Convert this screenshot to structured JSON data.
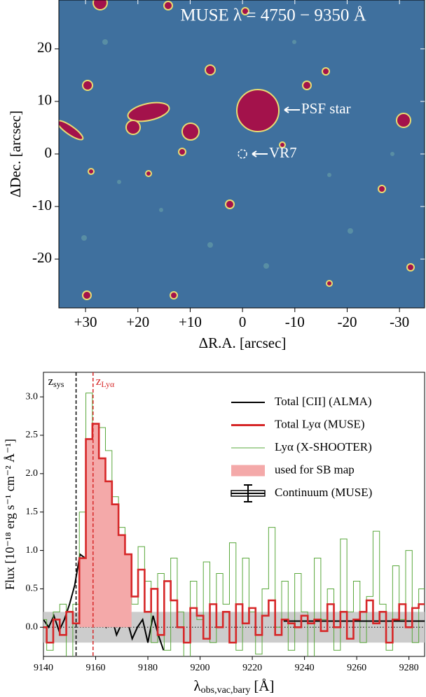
{
  "chart_data": [
    {
      "type": "image",
      "title": "MUSE λ = 4750 − 9350 Å",
      "xlabel": "ΔR.A. [arcsec]",
      "ylabel": "ΔDec. [arcsec]",
      "annotations": [
        "PSF star",
        "VR7"
      ],
      "xlim": [
        35.1,
        -34.8
      ],
      "ylim": [
        -29.3,
        29.3
      ],
      "xticks": [
        {
          "value": 30,
          "label": "+30"
        },
        {
          "value": 20,
          "label": "+20"
        },
        {
          "value": 10,
          "label": "+10"
        },
        0,
        -10,
        -20,
        -30
      ],
      "yticks": [
        20,
        10,
        0,
        -10,
        -20
      ]
    },
    {
      "type": "step",
      "xlabel": {
        "symbol": "λ",
        "subscript": "obs,vac,bary",
        "unit": "[Å]"
      },
      "ylabel": "Flux [10⁻¹⁸ erg s⁻¹ cm⁻² Å⁻¹]",
      "xlim": [
        9140,
        9286
      ],
      "ylim": [
        -0.38,
        3.32
      ],
      "xticks": [
        9140,
        9160,
        9180,
        9200,
        9220,
        9240,
        9260,
        9280
      ],
      "yticks": [
        {
          "value": 0,
          "label": "0.0"
        },
        0.5,
        {
          "value": 1,
          "label": "1.0"
        },
        1.5,
        {
          "value": 2,
          "label": "2.0"
        },
        2.5,
        {
          "value": 3,
          "label": "3.0"
        }
      ],
      "legend": "upper right",
      "noise_band": {
        "range": [
          -0.2,
          0.2
        ],
        "color": "#cccccc"
      },
      "vlines": [
        {
          "x": 9152.5,
          "color": "#000000",
          "symbol": "z",
          "subscript": "sys"
        },
        {
          "x": 9159,
          "color": "#d62728",
          "symbol": "z",
          "subscript": "Lyα"
        }
      ],
      "x": [
        9140,
        9142.5,
        9145,
        9147.5,
        9150,
        9152.5,
        9155,
        9157.5,
        9160,
        9162.5,
        9165,
        9167.5,
        9170,
        9172.5,
        9175,
        9177.5,
        9180,
        9182.5,
        9185,
        9187.5,
        9190,
        9192.5,
        9195,
        9197.5,
        9200,
        9202.5,
        9205,
        9207.5,
        9210,
        9212.5,
        9215,
        9217.5,
        9220,
        9222.5,
        9225,
        9227.5,
        9230,
        9232.5,
        9235,
        9237.5,
        9240,
        9242.5,
        9245,
        9247.5,
        9250,
        9252.5,
        9255,
        9257.5,
        9260,
        9262.5,
        9265,
        9267.5,
        9270,
        9272.5,
        9275,
        9277.5,
        9280,
        9282.5,
        9285
      ],
      "series": [
        {
          "name": "Total [CII] (ALMA)",
          "color": "#000000",
          "style": "line",
          "x": [
            9140,
            9142,
            9144,
            9146,
            9148,
            9150,
            9152,
            9154,
            9156,
            9158,
            9160,
            9162,
            9164,
            9166,
            9168,
            9170,
            9172,
            9174,
            9176,
            9178,
            9180,
            9182,
            9184,
            9186
          ],
          "values": [
            0.1,
            0.0,
            0.15,
            -0.05,
            0.1,
            0.3,
            0.55,
            0.95,
            0.9,
            0.55,
            0.25,
            0.1,
            0.0,
            0.15,
            -0.1,
            0.05,
            0.1,
            -0.15,
            0.0,
            0.1,
            -0.2,
            0.15,
            -0.1,
            -0.3
          ]
        },
        {
          "name": "Total Lyα (MUSE)",
          "color": "#d62728",
          "style": "step",
          "values": [
            0.0,
            -0.2,
            0.1,
            -0.1,
            0.2,
            0.05,
            0.9,
            2.45,
            2.65,
            2.2,
            1.9,
            1.6,
            1.2,
            0.95,
            0.4,
            0.75,
            0.2,
            0.5,
            -0.1,
            0.6,
            0.35,
            0.0,
            -0.2,
            0.25,
            0.15,
            -0.15,
            0.3,
            0.0,
            0.2,
            -0.2,
            0.3,
            0.05,
            0.25,
            -0.1,
            0.15,
            0.35,
            -0.1,
            0.1,
            0.05,
            0.0,
            0.15,
            0.05,
            0.1,
            -0.05,
            0.3,
            0.0,
            0.2,
            -0.15,
            0.1,
            0.2,
            0.35,
            0.05,
            0.2,
            -0.2,
            0.1,
            0.3,
            0.0,
            0.25,
            0.3
          ]
        },
        {
          "name": "Lyα (X-SHOOTER)",
          "color": "#5aa83c",
          "style": "step",
          "values": [
            0.1,
            -0.3,
            0.2,
            0.3,
            -0.4,
            0.3,
            1.5,
            3.05,
            2.4,
            2.6,
            2.3,
            1.7,
            1.3,
            0.9,
            0.3,
            1.05,
            0.6,
            -0.2,
            0.7,
            -0.3,
            0.9,
            0.2,
            -0.4,
            0.6,
            0.1,
            0.85,
            -0.2,
            0.7,
            0.3,
            1.1,
            -0.3,
            0.9,
            0.2,
            -0.35,
            0.5,
            1.3,
            0.0,
            0.6,
            -0.3,
            0.7,
            0.2,
            -0.4,
            0.9,
            0.1,
            0.5,
            -0.3,
            1.15,
            0.2,
            0.6,
            -0.2,
            0.4,
            1.25,
            0.3,
            -0.3,
            0.8,
            0.1,
            1.0,
            -0.2,
            0.5
          ]
        },
        {
          "name": "used for SB map",
          "color": "#f4a9a9",
          "style": "fill",
          "x": [
            9155,
            9157.5,
            9160,
            9162.5,
            9165,
            9167.5,
            9170,
            9172.5
          ],
          "values": [
            0.9,
            2.45,
            2.65,
            2.2,
            1.9,
            1.6,
            1.2,
            0.95
          ]
        },
        {
          "name": "Continuum (MUSE)",
          "color": "#000000",
          "style": "continuum",
          "x": [
            9232,
            9290
          ],
          "values": [
            0.08,
            0.08
          ]
        }
      ]
    }
  ]
}
